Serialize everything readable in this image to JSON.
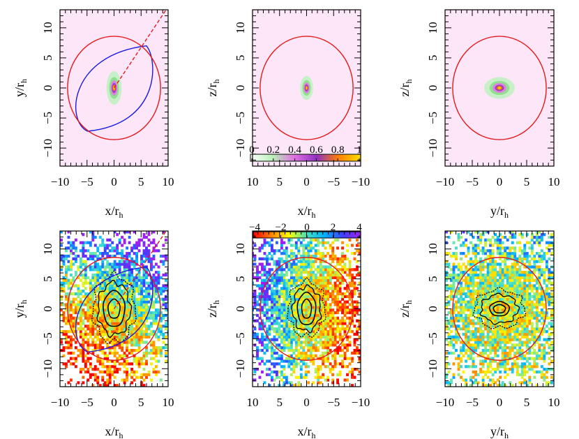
{
  "chart_data": [
    {
      "type": "heatmap",
      "panel": "top-left",
      "xlabel": "x/r",
      "ylabel": "y/r",
      "label_subscript": "h",
      "xlim": [
        -10,
        10
      ],
      "ylim": [
        -13,
        13
      ],
      "x_ticks": [
        -10,
        -5,
        0,
        5,
        10
      ],
      "y_ticks": [
        -10,
        -5,
        0,
        5,
        10
      ],
      "x_reversed": false,
      "background": "#fde6f7",
      "circle_radius": 8.6,
      "circle_color": "#e41a1c",
      "core": {
        "sx": 0.35,
        "sy": 0.7
      },
      "lens_curve": [
        [
          6,
          7
        ],
        [
          -4.9,
          -7.2
        ]
      ],
      "lens_color": "#1a1adf",
      "dashed_line": [
        [
          0,
          0
        ],
        [
          10,
          13.5
        ]
      ]
    },
    {
      "type": "heatmap",
      "panel": "top-middle",
      "xlabel": "x/r",
      "ylabel": "z/r",
      "label_subscript": "h",
      "xlim": [
        -10,
        10
      ],
      "ylim": [
        -13,
        13
      ],
      "x_ticks": [
        10,
        5,
        0,
        -5,
        -10
      ],
      "y_ticks": [
        -10,
        -5,
        0,
        5,
        10
      ],
      "x_reversed": true,
      "background": "#fde6f7",
      "circle_radius": 8.6,
      "circle_color": "#e41a1c",
      "core": {
        "sx": 0.3,
        "sy": 0.5
      },
      "colorbar": {
        "ticks": [
          0,
          0.2,
          0.4,
          0.6,
          0.8,
          1
        ],
        "tick_labels": [
          "0",
          "0.2",
          "0.4",
          "0.6",
          "0.8",
          "1"
        ],
        "colors": [
          "#ffffff",
          "#b8f0b8",
          "#e070e0",
          "#9030c0",
          "#ff8000",
          "#ffe000"
        ]
      }
    },
    {
      "type": "heatmap",
      "panel": "top-right",
      "xlabel": "y/r",
      "ylabel": "z/r",
      "label_subscript": "h",
      "xlim": [
        -10,
        10
      ],
      "ylim": [
        -13,
        13
      ],
      "x_ticks": [
        -10,
        -5,
        0,
        5,
        10
      ],
      "y_ticks": [
        -10,
        -5,
        0,
        5,
        10
      ],
      "x_reversed": false,
      "background": "#fde6f7",
      "circle_radius": 8.6,
      "circle_color": "#e41a1c",
      "core": {
        "sx": 0.7,
        "sy": 0.45
      }
    },
    {
      "type": "heatmap",
      "panel": "bottom-left",
      "xlabel": "x/r",
      "ylabel": "y/r",
      "label_subscript": "h",
      "xlim": [
        -10,
        10
      ],
      "ylim": [
        -13,
        13
      ],
      "x_ticks": [
        -10,
        -5,
        0,
        5,
        10
      ],
      "y_ticks": [
        -10,
        -5,
        0,
        5,
        10
      ],
      "x_reversed": false,
      "circle_radius": 8.6,
      "circle_color": "#e41a1c",
      "lens_curve": [
        [
          6,
          7
        ],
        [
          -4.9,
          -7.2
        ]
      ],
      "lens_color": "#1a1adf",
      "dashed_line": [
        [
          0,
          0
        ],
        [
          10,
          13.5
        ]
      ],
      "contours": [
        [
          1.1,
          1.6
        ],
        [
          2.0,
          3.0
        ],
        [
          3.0,
          4.4
        ],
        [
          3.9,
          5.6
        ]
      ],
      "field": {
        "gx": 0.18,
        "gy": 0.32,
        "spread": 11.5
      }
    },
    {
      "type": "heatmap",
      "panel": "bottom-middle",
      "xlabel": "x/r",
      "ylabel": "z/r",
      "label_subscript": "h",
      "xlim": [
        -10,
        10
      ],
      "ylim": [
        -13,
        13
      ],
      "x_ticks": [
        10,
        5,
        0,
        -5,
        -10
      ],
      "y_ticks": [
        -10,
        -5,
        0,
        5,
        10
      ],
      "x_reversed": true,
      "circle_radius": 8.6,
      "circle_color": "#e41a1c",
      "contours": [
        [
          0.9,
          1.6
        ],
        [
          1.7,
          2.7
        ],
        [
          2.6,
          3.7
        ],
        [
          3.4,
          4.6
        ]
      ],
      "field": {
        "gx": 0.38,
        "gy": 0.05,
        "spread": 12.0
      },
      "colorbar": {
        "ticks": [
          -4,
          -2,
          0,
          2,
          4
        ],
        "tick_labels": [
          "−4",
          "−2",
          "0",
          "2",
          "4"
        ],
        "colors": [
          "#ff0000",
          "#ff8000",
          "#ffff00",
          "#40e0c0",
          "#00b0ff",
          "#4040ff",
          "#a020f0"
        ]
      }
    },
    {
      "type": "heatmap",
      "panel": "bottom-right",
      "xlabel": "y/r",
      "ylabel": "z/r",
      "label_subscript": "h",
      "xlim": [
        -10,
        10
      ],
      "ylim": [
        -13,
        13
      ],
      "x_ticks": [
        -10,
        -5,
        0,
        5,
        10
      ],
      "y_ticks": [
        -10,
        -5,
        0,
        5,
        10
      ],
      "x_reversed": false,
      "circle_radius": 8.6,
      "circle_color": "#e41a1c",
      "contours": [
        [
          1.1,
          0.7
        ],
        [
          1.8,
          1.2
        ],
        [
          3.4,
          2.4
        ],
        [
          4.6,
          3.2
        ]
      ],
      "field": {
        "gx": 0.0,
        "gy": 0.05,
        "spread": 12.5
      }
    }
  ]
}
